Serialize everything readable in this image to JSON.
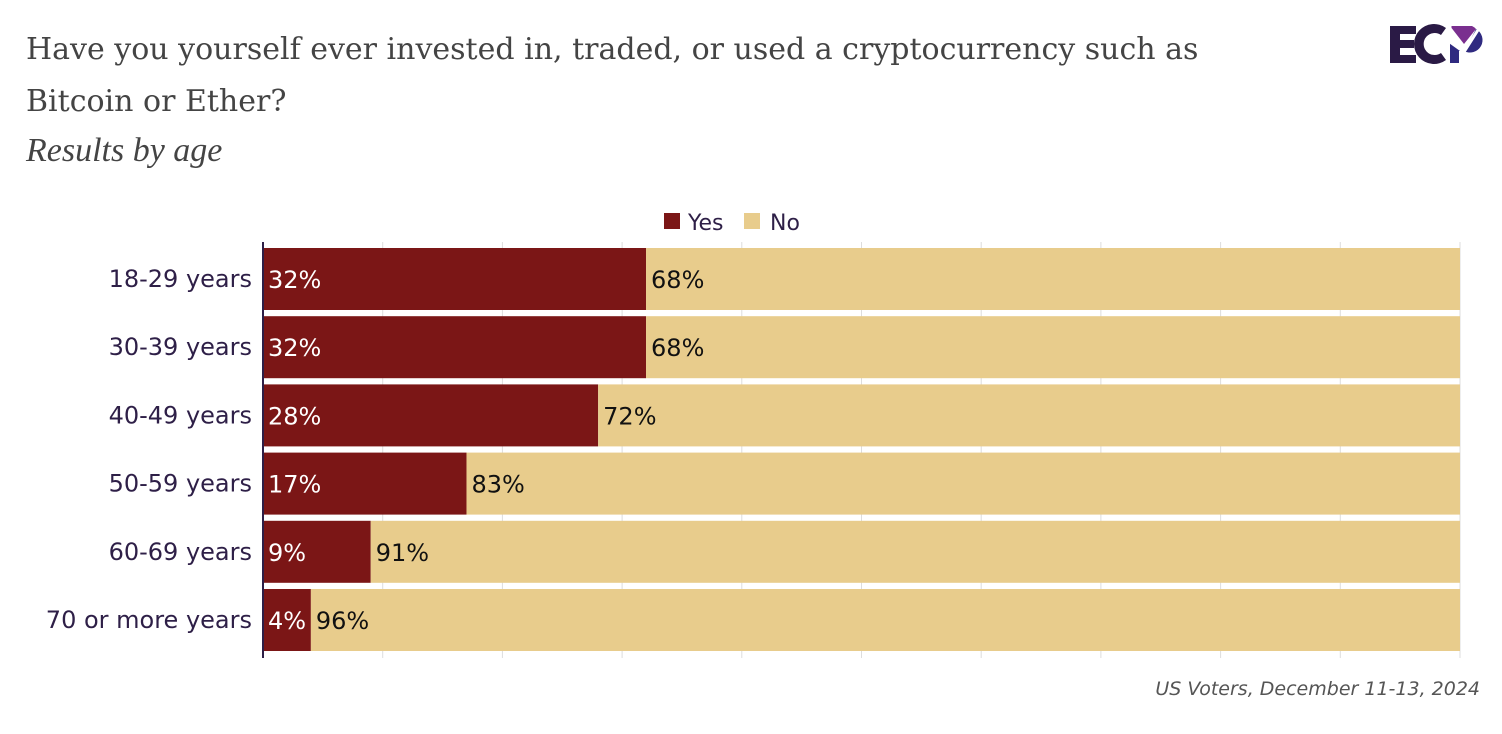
{
  "header": {
    "title": "Have you yourself ever invested in, traded, or used a cryptocurrency such as Bitcoin or Ether?",
    "subtitle": "Results by age",
    "logo_text": "ECP"
  },
  "footer": {
    "source": "US Voters, December 11-13, 2024"
  },
  "colors": {
    "yes": "#7b1616",
    "no": "#e8cc8c",
    "text": "#2e1f47"
  },
  "chart_data": {
    "type": "bar",
    "orientation": "horizontal",
    "stacked": true,
    "categories": [
      "18-29 years",
      "30-39 years",
      "40-49 years",
      "50-59 years",
      "60-69 years",
      "70 or more years"
    ],
    "series": [
      {
        "name": "Yes",
        "values": [
          32,
          32,
          28,
          17,
          9,
          4
        ],
        "labels": [
          "32%",
          "32%",
          "28%",
          "17%",
          "9%",
          "4%"
        ]
      },
      {
        "name": "No",
        "values": [
          68,
          68,
          72,
          83,
          91,
          96
        ],
        "labels": [
          "68%",
          "68%",
          "72%",
          "83%",
          "91%",
          "96%"
        ]
      }
    ],
    "xlim": [
      0,
      100
    ],
    "grid": true,
    "legend": "top"
  }
}
